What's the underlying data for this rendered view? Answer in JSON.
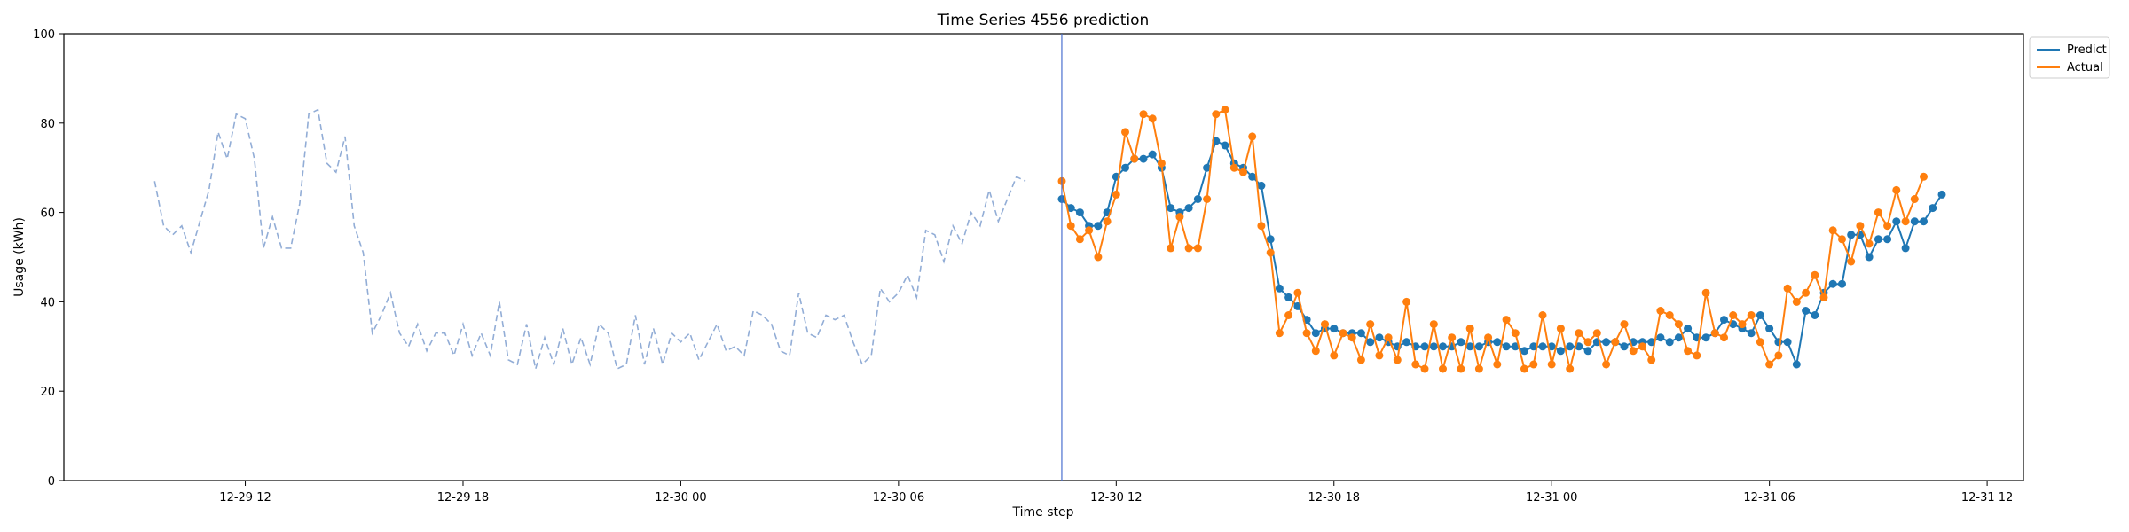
{
  "chart_data": {
    "type": "line",
    "title": "Time Series 4556 prediction",
    "xlabel": "Time step",
    "ylabel": "Usage (kWh)",
    "ylim": [
      0,
      100
    ],
    "xlim": [
      "2023-12-29T07:00",
      "2023-12-31T13:00"
    ],
    "x_ticks": [
      "12-29 12",
      "12-29 18",
      "12-30 00",
      "12-30 06",
      "12-30 12",
      "12-30 18",
      "12-31 00",
      "12-31 06",
      "12-31 12"
    ],
    "y_ticks": [
      0,
      20,
      40,
      60,
      80,
      100
    ],
    "grid": false,
    "legend_position": "top-right",
    "prediction_start": "2023-12-30T10:30",
    "step_minutes": 15,
    "history": {
      "start": "2023-12-29T09:30",
      "values": [
        67,
        57,
        55,
        57,
        51,
        58,
        65,
        78,
        72,
        82,
        81,
        72,
        52,
        59,
        52,
        52,
        62,
        82,
        83,
        71,
        69,
        77,
        57,
        51,
        33,
        37,
        42,
        33,
        30,
        35,
        29,
        33,
        33,
        28,
        35,
        28,
        33,
        28,
        40,
        27,
        26,
        35,
        25,
        32,
        26,
        34,
        26,
        32,
        26,
        35,
        33,
        25,
        26,
        37,
        26,
        34,
        26,
        33,
        31,
        33,
        27,
        31,
        35,
        29,
        30,
        28,
        38,
        37,
        35,
        29,
        28,
        42,
        33,
        32,
        37,
        36,
        37,
        31,
        26,
        28,
        43,
        40,
        42,
        46,
        41,
        56,
        55,
        49,
        57,
        53,
        60,
        57,
        65,
        58,
        63,
        68,
        67
      ]
    },
    "series": [
      {
        "name": "Predict",
        "color": "#1f77b4",
        "start": "2023-12-30T10:30",
        "values": [
          63,
          61,
          60,
          57,
          57,
          60,
          68,
          70,
          72,
          72,
          73,
          70,
          61,
          60,
          61,
          63,
          70,
          76,
          75,
          71,
          70,
          68,
          66,
          54,
          43,
          41,
          39,
          36,
          33,
          34,
          34,
          33,
          33,
          33,
          31,
          32,
          31,
          30,
          31,
          30,
          30,
          30,
          30,
          30,
          31,
          30,
          30,
          31,
          31,
          30,
          30,
          29,
          30,
          30,
          30,
          29,
          30,
          30,
          29,
          31,
          31,
          31,
          30,
          31,
          31,
          31,
          32,
          31,
          32,
          34,
          32,
          32,
          33,
          36,
          35,
          34,
          33,
          37,
          34,
          31,
          31,
          26,
          38,
          37,
          42,
          44,
          44,
          55,
          55,
          50,
          54,
          54,
          58,
          52,
          58,
          58,
          61,
          64
        ]
      },
      {
        "name": "Actual",
        "color": "#ff7f0e",
        "start": "2023-12-30T10:30",
        "values": [
          67,
          57,
          54,
          56,
          50,
          58,
          64,
          78,
          72,
          82,
          81,
          71,
          52,
          59,
          52,
          52,
          63,
          82,
          83,
          70,
          69,
          77,
          57,
          51,
          33,
          37,
          42,
          33,
          29,
          35,
          28,
          33,
          32,
          27,
          35,
          28,
          32,
          27,
          40,
          26,
          25,
          35,
          25,
          32,
          25,
          34,
          25,
          32,
          26,
          36,
          33,
          25,
          26,
          37,
          26,
          34,
          25,
          33,
          31,
          33,
          26,
          31,
          35,
          29,
          30,
          27,
          38,
          37,
          35,
          29,
          28,
          42,
          33,
          32,
          37,
          35,
          37,
          31,
          26,
          28,
          43,
          40,
          42,
          46,
          41,
          56,
          54,
          49,
          57,
          53,
          60,
          57,
          65,
          58,
          63,
          68
        ]
      }
    ]
  }
}
